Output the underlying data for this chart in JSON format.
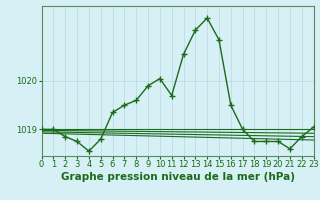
{
  "title": "Graphe pression niveau de la mer (hPa)",
  "background_color": "#d6f0f5",
  "grid_color": "#b8d8e0",
  "line_color": "#1a6b1a",
  "spine_color": "#5a8a5a",
  "x_min": 0,
  "x_max": 23,
  "y_min": 1018.45,
  "y_max": 1021.55,
  "yticks": [
    1019,
    1020
  ],
  "xticks": [
    0,
    1,
    2,
    3,
    4,
    5,
    6,
    7,
    8,
    9,
    10,
    11,
    12,
    13,
    14,
    15,
    16,
    17,
    18,
    19,
    20,
    21,
    22,
    23
  ],
  "series_main": [
    [
      0,
      1019.0
    ],
    [
      1,
      1019.0
    ],
    [
      2,
      1018.85
    ],
    [
      3,
      1018.75
    ],
    [
      4,
      1018.55
    ],
    [
      5,
      1018.8
    ],
    [
      6,
      1019.35
    ],
    [
      7,
      1019.5
    ],
    [
      8,
      1019.6
    ],
    [
      9,
      1019.9
    ],
    [
      10,
      1020.05
    ],
    [
      11,
      1019.7
    ],
    [
      12,
      1020.55
    ],
    [
      13,
      1021.05
    ],
    [
      14,
      1021.3
    ],
    [
      15,
      1020.85
    ],
    [
      16,
      1019.5
    ],
    [
      17,
      1019.0
    ],
    [
      18,
      1018.75
    ],
    [
      19,
      1018.75
    ],
    [
      20,
      1018.75
    ],
    [
      21,
      1018.6
    ],
    [
      22,
      1018.85
    ],
    [
      23,
      1019.05
    ]
  ],
  "series_flat": [
    [
      [
        0,
        1019.0
      ],
      [
        23,
        1019.0
      ]
    ],
    [
      [
        0,
        1018.98
      ],
      [
        23,
        1018.92
      ]
    ],
    [
      [
        0,
        1018.95
      ],
      [
        23,
        1018.85
      ]
    ],
    [
      [
        0,
        1018.92
      ],
      [
        23,
        1018.78
      ]
    ]
  ],
  "title_fontsize": 7.5,
  "tick_fontsize": 6.0
}
